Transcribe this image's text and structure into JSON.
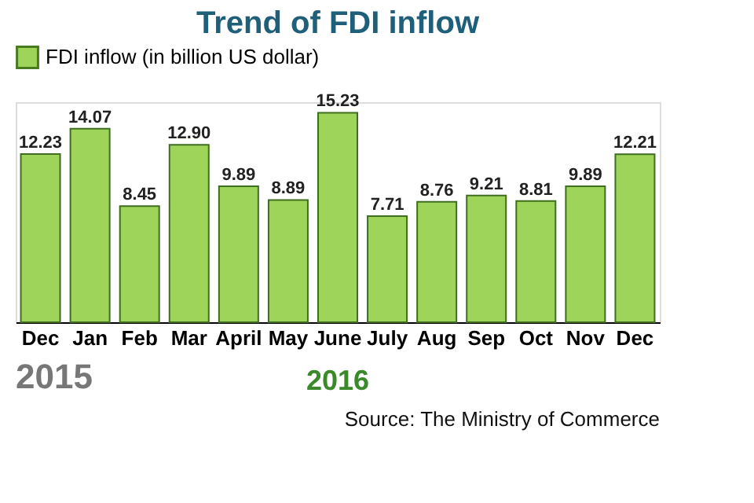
{
  "chart_data": {
    "type": "bar",
    "title": "Trend of FDI inflow",
    "categories": [
      "Dec",
      "Jan",
      "Feb",
      "Mar",
      "April",
      "May",
      "June",
      "July",
      "Aug",
      "Sep",
      "Oct",
      "Nov",
      "Dec"
    ],
    "series": [
      {
        "name": "FDI inflow (in billion US dollar)",
        "color": "#9fd45a",
        "values": [
          12.23,
          14.07,
          8.45,
          12.9,
          9.89,
          8.89,
          15.23,
          7.71,
          8.76,
          9.21,
          8.81,
          9.89,
          12.21
        ],
        "value_labels": [
          "12.23",
          "14.07",
          "8.45",
          "12.90",
          "9.89",
          "8.89",
          "15.23",
          "7.71",
          "8.76",
          "9.21",
          "8.81",
          "9.89",
          "12.21"
        ]
      }
    ],
    "legend": "top",
    "annotations": [
      "2015",
      "2016",
      "Source: The Ministry of Commerce"
    ]
  }
}
